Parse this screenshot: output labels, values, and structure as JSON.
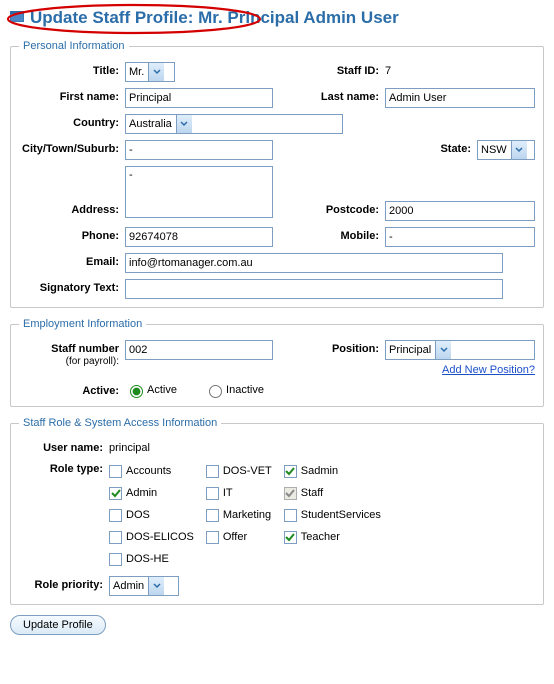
{
  "title": "Update Staff Profile: Mr. Principal Admin User",
  "sections": {
    "personal": {
      "legend": "Personal Information",
      "labels": {
        "title": "Title:",
        "staffId": "Staff ID:",
        "firstName": "First name:",
        "lastName": "Last name:",
        "country": "Country:",
        "city": "City/Town/Suburb:",
        "state": "State:",
        "address": "Address:",
        "postcode": "Postcode:",
        "phone": "Phone:",
        "mobile": "Mobile:",
        "email": "Email:",
        "signatory": "Signatory Text:"
      },
      "values": {
        "title": "Mr.",
        "staffId": "7",
        "firstName": "Principal",
        "lastName": "Admin User",
        "country": "Australia",
        "city": "-",
        "state": "NSW",
        "address": "-",
        "postcode": "2000",
        "phone": "92674078",
        "mobile": "-",
        "email": "info@rtomanager.com.au",
        "signatory": ""
      }
    },
    "employment": {
      "legend": "Employment Information",
      "labels": {
        "staffNumber": "Staff number",
        "staffNumberSub": "(for payroll):",
        "position": "Position:",
        "addPosition": "Add New Position?",
        "active": "Active:",
        "activeOpt": "Active",
        "inactiveOpt": "Inactive"
      },
      "values": {
        "staffNumber": "002",
        "position": "Principal",
        "active": "active"
      }
    },
    "roles": {
      "legend": "Staff Role & System Access Information",
      "labels": {
        "userName": "User name:",
        "roleType": "Role type:",
        "rolePriority": "Role priority:"
      },
      "values": {
        "userName": "principal",
        "rolePriority": "Admin"
      },
      "columns": [
        [
          {
            "label": "Accounts",
            "checked": false,
            "disabled": false
          },
          {
            "label": "Admin",
            "checked": true,
            "disabled": false
          },
          {
            "label": "DOS",
            "checked": false,
            "disabled": false
          },
          {
            "label": "DOS-ELICOS",
            "checked": false,
            "disabled": false
          },
          {
            "label": "DOS-HE",
            "checked": false,
            "disabled": false
          }
        ],
        [
          {
            "label": "DOS-VET",
            "checked": false,
            "disabled": false
          },
          {
            "label": "IT",
            "checked": false,
            "disabled": false
          },
          {
            "label": "Marketing",
            "checked": false,
            "disabled": false
          },
          {
            "label": "Offer",
            "checked": false,
            "disabled": false
          }
        ],
        [
          {
            "label": "Sadmin",
            "checked": true,
            "disabled": false
          },
          {
            "label": "Staff",
            "checked": true,
            "disabled": true
          },
          {
            "label": "StudentServices",
            "checked": false,
            "disabled": false
          },
          {
            "label": "Teacher",
            "checked": true,
            "disabled": false
          }
        ]
      ]
    }
  },
  "button": "Update Profile",
  "colors": {
    "accent": "#2b6da9",
    "annot": "#d40000",
    "check": "#1e8a1e"
  }
}
